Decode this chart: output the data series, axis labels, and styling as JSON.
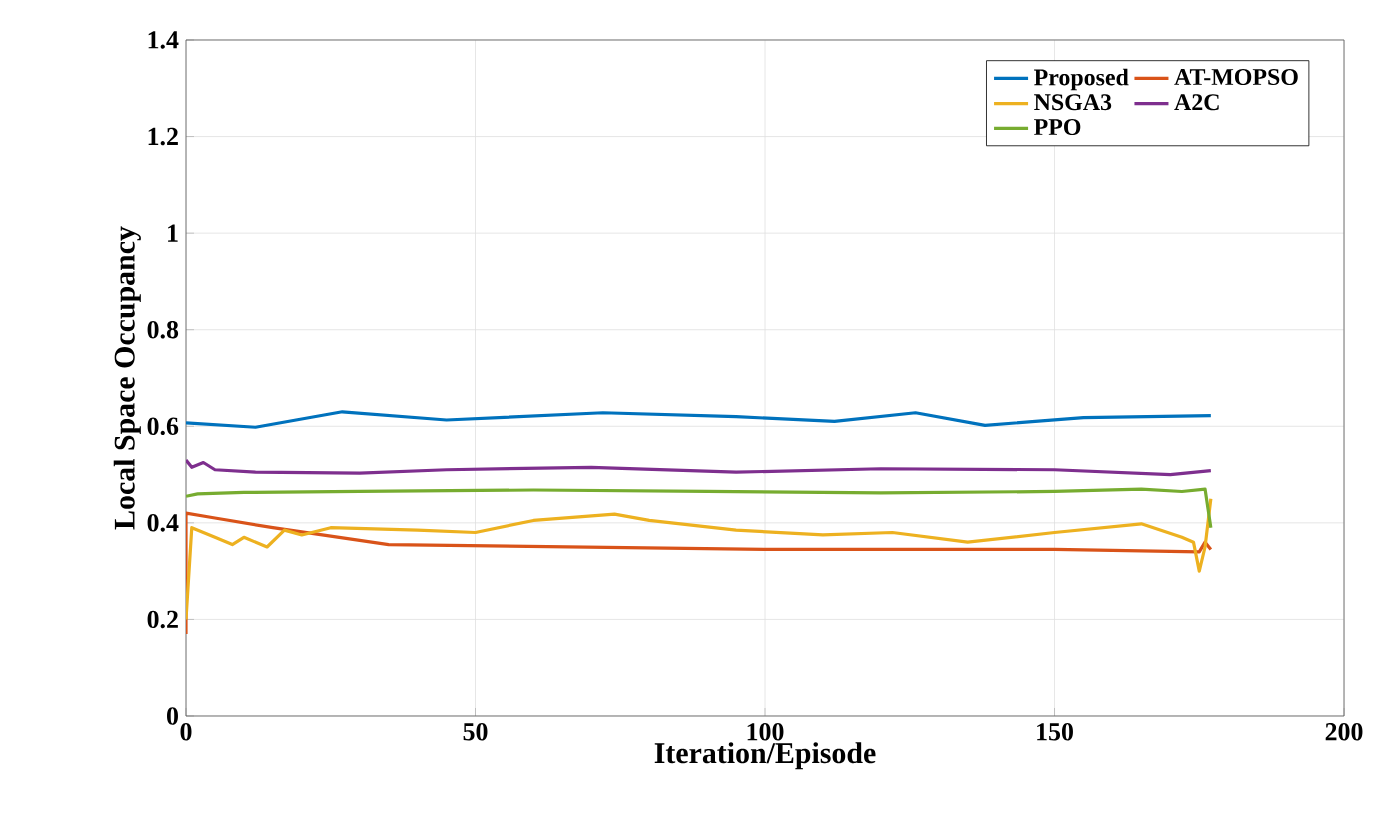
{
  "chart_data": {
    "type": "line",
    "xlabel": "Iteration/Episode",
    "ylabel": "Local Space Occupancy",
    "xlim": [
      0,
      200
    ],
    "ylim": [
      0,
      1.4
    ],
    "xticks": [
      0,
      50,
      100,
      150,
      200
    ],
    "yticks": [
      0,
      0.2,
      0.4,
      0.6,
      0.8,
      1,
      1.2,
      1.4
    ],
    "grid": true,
    "legend": "top right",
    "series": [
      {
        "name": "Proposed",
        "color": "#0072bd",
        "x": [
          0,
          12,
          27,
          45,
          72,
          95,
          112,
          126,
          138,
          155,
          177
        ],
        "values": [
          0.607,
          0.598,
          0.63,
          0.613,
          0.628,
          0.62,
          0.61,
          0.628,
          0.602,
          0.618,
          0.622
        ]
      },
      {
        "name": "AT-MOPSO",
        "color": "#d95319",
        "x": [
          0,
          0,
          5,
          15,
          35,
          100,
          150,
          175,
          176,
          177
        ],
        "values": [
          0.17,
          0.42,
          0.41,
          0.39,
          0.355,
          0.345,
          0.345,
          0.34,
          0.36,
          0.345
        ]
      },
      {
        "name": "NSGA3",
        "color": "#edb120",
        "x": [
          0,
          1,
          5,
          8,
          10,
          14,
          17,
          20,
          25,
          40,
          50,
          60,
          74,
          80,
          95,
          110,
          122,
          135,
          150,
          165,
          172,
          174,
          175,
          176,
          177
        ],
        "values": [
          0.2,
          0.39,
          0.37,
          0.355,
          0.37,
          0.35,
          0.385,
          0.375,
          0.39,
          0.385,
          0.38,
          0.405,
          0.418,
          0.405,
          0.385,
          0.375,
          0.38,
          0.36,
          0.38,
          0.398,
          0.37,
          0.36,
          0.3,
          0.35,
          0.45
        ]
      },
      {
        "name": "A2C",
        "color": "#7e2f8e",
        "x": [
          0,
          1,
          3,
          5,
          12,
          30,
          45,
          70,
          95,
          120,
          150,
          170,
          177
        ],
        "values": [
          0.53,
          0.515,
          0.525,
          0.51,
          0.505,
          0.503,
          0.51,
          0.515,
          0.505,
          0.512,
          0.51,
          0.5,
          0.508
        ]
      },
      {
        "name": "PPO",
        "color": "#77ac30",
        "x": [
          0,
          2,
          10,
          30,
          60,
          90,
          120,
          150,
          165,
          172,
          176,
          177
        ],
        "values": [
          0.455,
          0.46,
          0.463,
          0.465,
          0.468,
          0.465,
          0.462,
          0.465,
          0.47,
          0.465,
          0.47,
          0.39
        ]
      }
    ]
  }
}
